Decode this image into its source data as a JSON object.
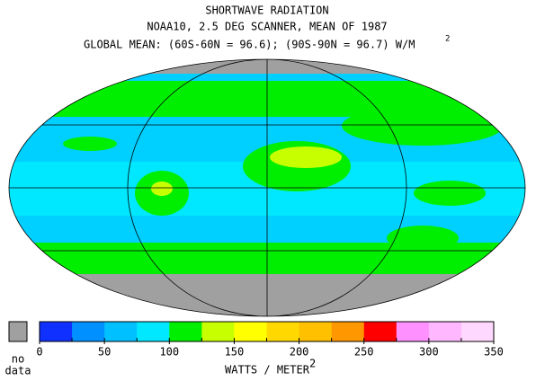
{
  "header": {
    "title": "SHORTWAVE RADIATION",
    "subtitle": "NOAA10,  2.5 DEG SCANNER,  MEAN OF 1987",
    "global_mean": "GLOBAL MEAN: (60S-60N = 96.6); (90S-90N = 96.7) W/M",
    "global_mean_superscript": "2"
  },
  "legend": {
    "no_data_label": [
      "no",
      "data"
    ],
    "no_data_color": "#a0a0a0",
    "ticks": [
      0,
      50,
      100,
      150,
      200,
      250,
      300,
      350
    ],
    "bounds": [
      0,
      350
    ],
    "colors": [
      "#1030ff",
      "#0090ff",
      "#00c0ff",
      "#00e8ff",
      "#00ee00",
      "#c8ff00",
      "#ffff00",
      "#ffd800",
      "#ffc000",
      "#ff9800",
      "#ff0000",
      "#ff90ff",
      "#ffb8ff",
      "#ffd8ff"
    ],
    "unit": "WATTS / METER",
    "unit_superscript": "2"
  }
}
